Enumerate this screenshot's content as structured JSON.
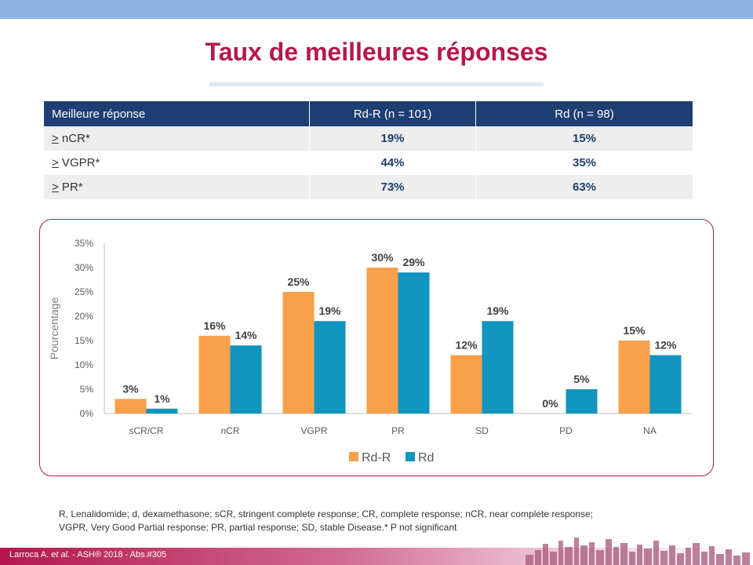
{
  "title": "Taux de meilleures réponses",
  "table": {
    "headers": [
      "Meilleure réponse",
      "Rd-R (n = 101)",
      "Rd (n = 98)"
    ],
    "rows": [
      {
        "prefix": ">",
        "label": " nCR*",
        "rdr": "19%",
        "rd": "15%"
      },
      {
        "prefix": ">",
        "label": " VGPR*",
        "rdr": "44%",
        "rd": "35%"
      },
      {
        "prefix": ">",
        "label": " PR*",
        "rdr": "73%",
        "rd": "63%"
      }
    ]
  },
  "chart_data": {
    "type": "bar",
    "categories": [
      "sCR/CR",
      "nCR",
      "VGPR",
      "PR",
      "SD",
      "PD",
      "NA"
    ],
    "series": [
      {
        "name": "Rd-R",
        "values": [
          3,
          16,
          25,
          30,
          12,
          0,
          15
        ],
        "color": "#f9a04a"
      },
      {
        "name": "Rd",
        "values": [
          1,
          14,
          19,
          29,
          19,
          5,
          12
        ],
        "color": "#0f95be"
      }
    ],
    "data_labels": {
      "Rd-R": [
        "3%",
        "16%",
        "25%",
        "30%",
        "12%",
        "0%",
        "15%"
      ],
      "Rd": [
        "1%",
        "14%",
        "19%",
        "29%",
        "19%",
        "5%",
        "12%"
      ]
    },
    "yticks": [
      "0%",
      "5%",
      "10%",
      "15%",
      "20%",
      "25%",
      "30%",
      "35%"
    ],
    "ylabel": "Pourcentage",
    "xlabel": "",
    "ylim": [
      0,
      35
    ],
    "grid": false,
    "legend": "bottom-center"
  },
  "footnote": {
    "line1": "R, Lenalidomide; d, dexamethasone; sCR, stringent complete response; CR, complete response; nCR, near complete response;",
    "line2": "VGPR, Very Good Partial response; PR, partial response; SD, stable Disease.* P not significant"
  },
  "citation": {
    "prefix": "Larroca A. ",
    "italic": "et al.",
    "suffix": " - ASH® 2018 - Abs.#305"
  },
  "colors": {
    "accent": "#b5174e",
    "table_header": "#1f3e73",
    "rdr": "#f9a04a",
    "rd": "#0f95be",
    "top_band": "#8eb4e3"
  }
}
